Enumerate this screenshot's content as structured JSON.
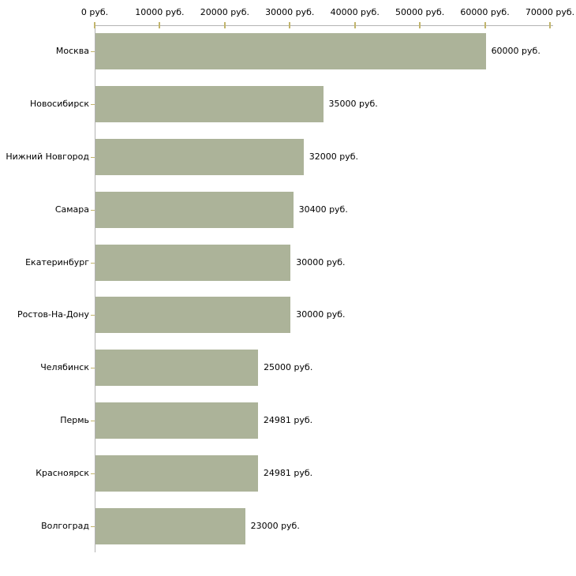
{
  "chart_data": {
    "type": "bar",
    "orientation": "horizontal",
    "title": "",
    "xlabel": "",
    "ylabel": "",
    "categories": [
      "Москва",
      "Новосибирск",
      "Нижний Новгород",
      "Самара",
      "Екатеринбург",
      "Ростов-На-Дону",
      "Челябинск",
      "Пермь",
      "Красноярск",
      "Волгоград"
    ],
    "values": [
      60000,
      35000,
      32000,
      30400,
      30000,
      30000,
      25000,
      24981,
      24981,
      23000
    ],
    "value_labels": [
      "60000 руб.",
      "35000 руб.",
      "32000 руб.",
      "30400 руб.",
      "30000 руб.",
      "30000 руб.",
      "25000 руб.",
      "24981 руб.",
      "24981 руб.",
      "23000 руб."
    ],
    "xlim": [
      0,
      70000
    ],
    "x_ticks": [
      0,
      10000,
      20000,
      30000,
      40000,
      50000,
      60000,
      70000
    ],
    "x_tick_labels": [
      "0 руб.",
      "10000 руб.",
      "20000 руб.",
      "30000 руб.",
      "40000 руб.",
      "50000 руб.",
      "60000 руб.",
      "70000 руб."
    ],
    "grid": false,
    "legend": false,
    "colors": {
      "bar": "#ACB399",
      "axis_line": "#B3B3B3",
      "tick_mark": "#C2B56C",
      "text": "#000000",
      "background": "#FFFFFF"
    }
  }
}
